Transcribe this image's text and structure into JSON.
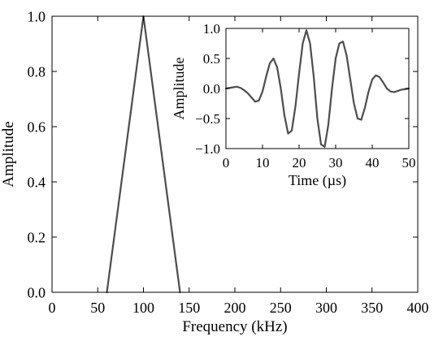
{
  "chart_data": [
    {
      "type": "line",
      "xlabel": "Frequency (kHz)",
      "ylabel": "Amplitude",
      "xlim": [
        0,
        400
      ],
      "ylim": [
        0,
        1.0
      ],
      "xticks": [
        0,
        50,
        100,
        150,
        200,
        250,
        300,
        350,
        400
      ],
      "yticks": [
        0.0,
        0.2,
        0.4,
        0.6,
        0.8,
        1.0
      ],
      "xtick_labels": [
        "0",
        "50",
        "100",
        "150",
        "200",
        "250",
        "300",
        "350",
        "400"
      ],
      "ytick_labels": [
        "0.0",
        "0.2",
        "0.4",
        "0.6",
        "0.8",
        "1.0"
      ],
      "grid": false,
      "series": [
        {
          "x": [
            60,
            100,
            140
          ],
          "y": [
            0.0,
            1.0,
            0.0
          ],
          "color": "#4d4d4d"
        }
      ]
    },
    {
      "type": "line",
      "xlabel": "Time (µs)",
      "ylabel": "Amplitude",
      "xlim": [
        0,
        50
      ],
      "ylim": [
        -1.0,
        1.0
      ],
      "xticks": [
        0,
        10,
        20,
        30,
        40,
        50
      ],
      "yticks": [
        -1.0,
        -0.5,
        0.0,
        0.5,
        1.0
      ],
      "xtick_labels": [
        "0",
        "10",
        "20",
        "30",
        "40",
        "50"
      ],
      "ytick_labels": [
        "−1.0",
        "−0.5",
        "0.0",
        "0.5",
        "1.0"
      ],
      "grid": false,
      "series": [
        {
          "x": [
            0,
            1,
            2,
            3,
            4,
            5,
            6,
            7,
            8,
            9,
            10,
            11,
            12,
            13,
            14,
            15,
            16,
            17,
            18,
            19,
            20,
            21,
            22,
            23,
            24,
            25,
            26,
            27,
            28,
            29,
            30,
            31,
            32,
            33,
            34,
            35,
            36,
            37,
            38,
            39,
            40,
            41,
            42,
            43,
            44,
            45,
            46,
            47,
            48,
            49,
            50
          ],
          "y": [
            0.0,
            0.01,
            0.02,
            0.03,
            0.01,
            -0.03,
            -0.08,
            -0.15,
            -0.22,
            -0.2,
            -0.05,
            0.2,
            0.42,
            0.5,
            0.35,
            0.0,
            -0.45,
            -0.75,
            -0.7,
            -0.3,
            0.25,
            0.75,
            0.97,
            0.75,
            0.2,
            -0.5,
            -0.93,
            -0.97,
            -0.6,
            0.0,
            0.5,
            0.75,
            0.78,
            0.55,
            0.15,
            -0.25,
            -0.5,
            -0.52,
            -0.32,
            -0.05,
            0.15,
            0.22,
            0.19,
            0.1,
            0.0,
            -0.05,
            -0.06,
            -0.04,
            -0.02,
            -0.01,
            0.0
          ],
          "color": "#4d4d4d"
        }
      ]
    }
  ]
}
